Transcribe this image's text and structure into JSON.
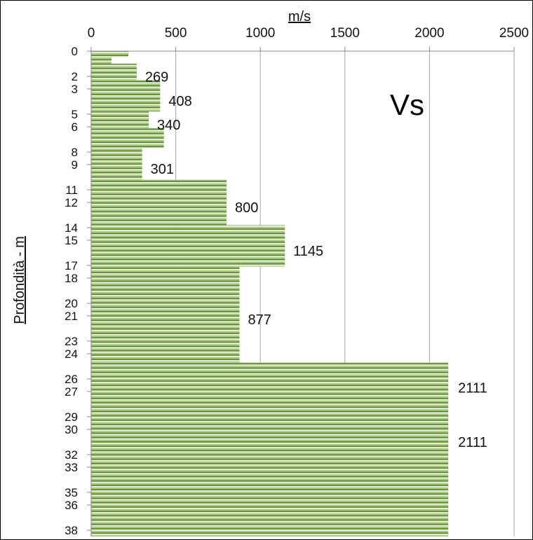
{
  "chart_data": {
    "type": "bar",
    "orientation": "horizontal",
    "xlabel": "m/s",
    "ylabel": "Profondità - m",
    "annotation": "Vs",
    "xlim": [
      0,
      2500
    ],
    "x_ticks": [
      0,
      500,
      1000,
      1500,
      2000,
      2500
    ],
    "ylim": [
      0,
      38.5
    ],
    "y_ticks": [
      0,
      2,
      3,
      5,
      6,
      8,
      9,
      11,
      12,
      14,
      15,
      17,
      18,
      20,
      21,
      23,
      24,
      26,
      27,
      29,
      30,
      32,
      33,
      35,
      36,
      38
    ],
    "grid": true,
    "layers": [
      {
        "top": 0,
        "bottom": 0.5,
        "value": 220
      },
      {
        "top": 0.5,
        "bottom": 1,
        "value": 120
      },
      {
        "top": 1,
        "bottom": 2.3,
        "value": 269,
        "label": "269"
      },
      {
        "top": 2.3,
        "bottom": 4.8,
        "value": 408,
        "label": "408"
      },
      {
        "top": 4.8,
        "bottom": 6.1,
        "value": 340,
        "label": "340"
      },
      {
        "top": 6.1,
        "bottom": 7.7,
        "value": 430
      },
      {
        "top": 7.7,
        "bottom": 10.2,
        "value": 301,
        "label": "301"
      },
      {
        "top": 10.2,
        "bottom": 13.8,
        "value": 800,
        "label": "800"
      },
      {
        "top": 13.8,
        "bottom": 17.1,
        "value": 1145,
        "label": "1145"
      },
      {
        "top": 17.1,
        "bottom": 24.7,
        "value": 877,
        "label": "877"
      },
      {
        "top": 24.7,
        "bottom": 38.5,
        "value": 2111
      }
    ],
    "extra_labels": [
      {
        "depth": 26.7,
        "value": 2111,
        "text": "2111"
      },
      {
        "depth": 31.0,
        "value": 2111,
        "text": "2111"
      }
    ],
    "colors": {
      "bar_light": "#e6f0d2",
      "bar_mid": "#a9c77a",
      "bar_dark": "#4d7a2a",
      "grid": "#a6a6a6"
    }
  }
}
